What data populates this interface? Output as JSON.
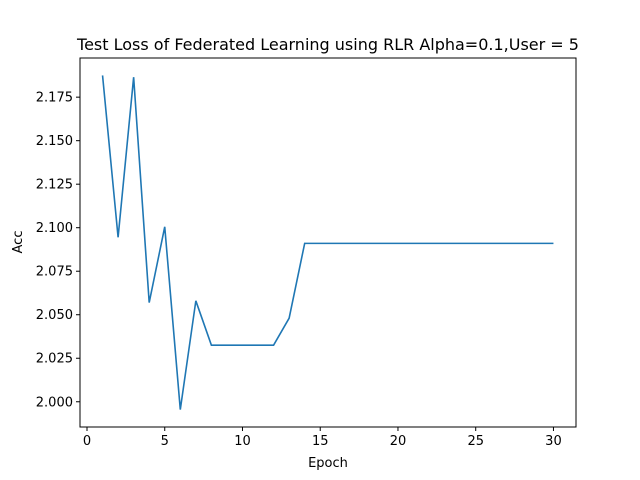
{
  "chart_data": {
    "type": "line",
    "title": "Test Loss of Federated Learning  using RLR Alpha=0.1,User = 5",
    "xlabel": "Epoch",
    "ylabel": "Acc",
    "xlim": [
      -0.45,
      31.45
    ],
    "ylim": [
      1.9855,
      2.1975
    ],
    "xticks": [
      0,
      5,
      10,
      15,
      20,
      25,
      30
    ],
    "yticks": [
      2.0,
      2.025,
      2.05,
      2.075,
      2.1,
      2.125,
      2.15,
      2.175
    ],
    "ytick_labels": [
      "2.000",
      "2.025",
      "2.050",
      "2.075",
      "2.100",
      "2.125",
      "2.150",
      "2.175"
    ],
    "grid": false,
    "line_color": "#1f77b4",
    "series": [
      {
        "x": [
          1,
          2,
          3,
          4,
          5,
          6,
          7,
          8,
          9,
          10,
          11,
          12,
          13,
          14,
          15,
          16,
          17,
          18,
          19,
          20,
          21,
          22,
          23,
          24,
          25,
          26,
          27,
          28,
          29,
          30
        ],
        "y": [
          2.1875,
          2.0945,
          2.1865,
          2.057,
          2.1005,
          1.9955,
          2.058,
          2.0325,
          2.0325,
          2.0325,
          2.0325,
          2.0325,
          2.048,
          2.091,
          2.091,
          2.091,
          2.091,
          2.091,
          2.091,
          2.091,
          2.091,
          2.091,
          2.091,
          2.091,
          2.091,
          2.091,
          2.091,
          2.091,
          2.091,
          2.091
        ]
      }
    ]
  }
}
